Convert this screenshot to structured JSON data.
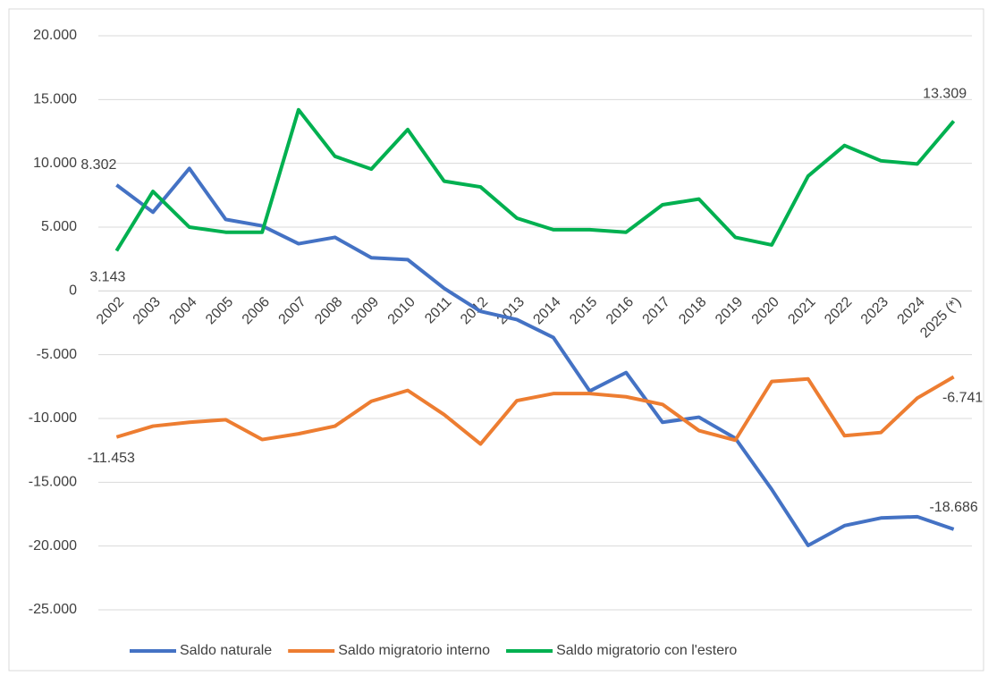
{
  "chart_data": {
    "type": "line",
    "categories": [
      "2002",
      "2003",
      "2004",
      "2005",
      "2006",
      "2007",
      "2008",
      "2009",
      "2010",
      "2011",
      "2012",
      "2013",
      "2014",
      "2015",
      "2016",
      "2017",
      "2018",
      "2019",
      "2020",
      "2021",
      "2022",
      "2023",
      "2024",
      "2025 (*)"
    ],
    "series": [
      {
        "name": "Saldo naturale",
        "color": "#4472c4",
        "values": [
          8302,
          6170,
          9600,
          5600,
          5100,
          3700,
          4200,
          2600,
          2450,
          200,
          -1600,
          -2250,
          -3650,
          -7850,
          -6400,
          -10300,
          -9900,
          -11550,
          -15560,
          -19950,
          -18400,
          -17800,
          -17700,
          -18686
        ],
        "value_labels": [
          "8.302",
          null,
          null,
          null,
          null,
          null,
          null,
          null,
          null,
          null,
          null,
          null,
          null,
          null,
          null,
          null,
          null,
          null,
          null,
          null,
          null,
          null,
          null,
          "-18.686"
        ]
      },
      {
        "name": "Saldo migratorio interno",
        "color": "#ed7d31",
        "values": [
          -11453,
          -10600,
          -10300,
          -10100,
          -11650,
          -11200,
          -10600,
          -8650,
          -7800,
          -9700,
          -12000,
          -8600,
          -8050,
          -8050,
          -8300,
          -8900,
          -10950,
          -11700,
          -7100,
          -6900,
          -11350,
          -11100,
          -8400,
          -6741
        ],
        "value_labels": [
          "-11.453",
          null,
          null,
          null,
          null,
          null,
          null,
          null,
          null,
          null,
          null,
          null,
          null,
          null,
          null,
          null,
          null,
          null,
          null,
          null,
          null,
          null,
          null,
          "-6.741"
        ]
      },
      {
        "name": "Saldo migratorio con l'estero",
        "color": "#00b050",
        "values": [
          3143,
          7800,
          5000,
          4600,
          4600,
          14200,
          10550,
          9550,
          12650,
          8600,
          8150,
          5700,
          4800,
          4800,
          4600,
          6750,
          7200,
          4200,
          3600,
          9000,
          11400,
          10200,
          9950,
          13309
        ],
        "value_labels": [
          "3.143",
          null,
          null,
          null,
          null,
          null,
          null,
          null,
          null,
          null,
          null,
          null,
          null,
          null,
          null,
          null,
          null,
          null,
          null,
          null,
          null,
          null,
          null,
          "13.309"
        ]
      }
    ],
    "ylim": [
      -25000,
      20000
    ],
    "yticks": [
      {
        "value": -25000,
        "label": "-25.000"
      },
      {
        "value": -20000,
        "label": "-20.000"
      },
      {
        "value": -15000,
        "label": "-15.000"
      },
      {
        "value": -10000,
        "label": "-10.000"
      },
      {
        "value": -5000,
        "label": "-5.000"
      },
      0,
      {
        "value": 5000,
        "label": "5.000"
      },
      {
        "value": 10000,
        "label": "10.000"
      },
      {
        "value": 15000,
        "label": "15.000"
      },
      {
        "value": 20000,
        "label": "20.000"
      }
    ],
    "grid": true,
    "legend": "bottom"
  }
}
